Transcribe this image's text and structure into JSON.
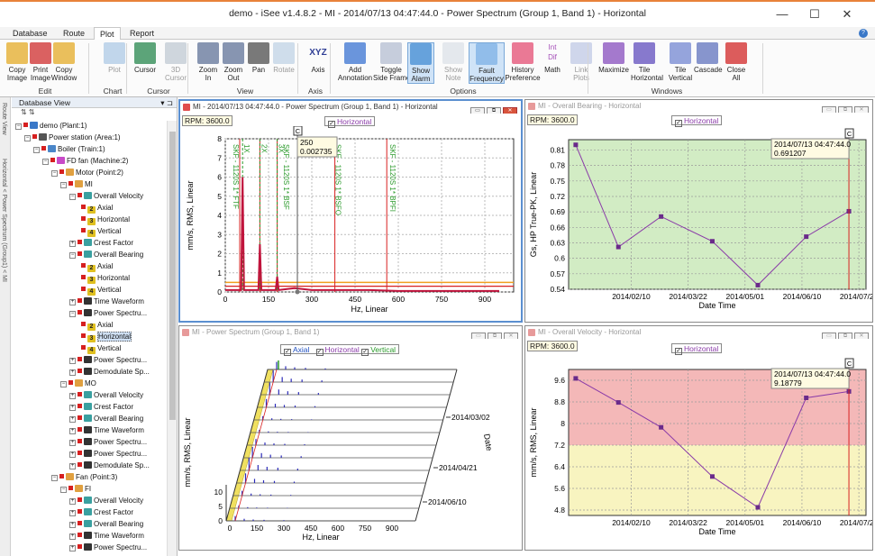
{
  "window": {
    "title": "demo - iSee v1.4.8.2 - MI - 2014/07/13 04:47:44.0 - Power Spectrum (Group 1, Band 1) - Horizontal",
    "minimize": "—",
    "maximize": "☐",
    "close": "✕"
  },
  "tabs": [
    "Database",
    "Route",
    "Plot",
    "Report"
  ],
  "ribbon": {
    "groups": [
      {
        "label": "Edit",
        "buttons": [
          "Copy\nImage",
          "Print\nImage",
          "Copy\nWindow"
        ]
      },
      {
        "label": "Chart",
        "buttons": [
          "Plot"
        ]
      },
      {
        "label": "Cursor",
        "buttons": [
          "Cursor",
          "3D\nCursor"
        ]
      },
      {
        "label": "View",
        "buttons": [
          "Zoom\nIn",
          "Zoom\nOut",
          "Pan",
          "Rotate"
        ]
      },
      {
        "label": "Axis",
        "buttons": [
          "Axis"
        ]
      },
      {
        "label": "Options",
        "buttons": [
          "Add\nAnnotation",
          "Toggle\nSide Frame",
          "Show\nAlarm",
          "Show\nNote",
          "Fault\nFrequency",
          "History\nPreference",
          "Math",
          "Link\nPlots"
        ]
      },
      {
        "label": "Windows",
        "buttons": [
          "Maximize",
          "Tile\nHorizontal",
          "Tile\nVertical",
          "Cascade",
          "Close\nAll"
        ]
      }
    ],
    "math_icon_text": "Int\nDif",
    "axis_icon_text": "XYZ"
  },
  "side_tabs": [
    "Route View",
    "Horizontal < Power Spectrum (Group1) < MI"
  ],
  "db_panel": {
    "title": "Database View",
    "pin": "▾ ⊐",
    "tools": "⇅ ⇅"
  },
  "tree": [
    {
      "label": "demo (Plant:1)",
      "level": 0,
      "exp": "−",
      "icon": "#3a78c8"
    },
    {
      "label": "Power station (Area:1)",
      "level": 1,
      "exp": "−",
      "icon": "#555555"
    },
    {
      "label": "Boiler (Train:1)",
      "level": 2,
      "exp": "−",
      "icon": "#4a86c8"
    },
    {
      "label": "FD fan (Machine:2)",
      "level": 3,
      "exp": "−",
      "icon": "#c84ac8"
    },
    {
      "label": "Motor (Point:2)",
      "level": 4,
      "exp": "−",
      "icon": "#e0a040"
    },
    {
      "label": "MI",
      "level": 5,
      "exp": "−",
      "icon": "#e0a040"
    },
    {
      "label": "Overall Velocity",
      "level": 6,
      "exp": "−",
      "icon": "#3aa0a0"
    },
    {
      "label": "Axial",
      "level": 7,
      "exp": "",
      "icon": "#e0c020",
      "num": "2"
    },
    {
      "label": "Horizontal",
      "level": 7,
      "exp": "",
      "icon": "#e0c020",
      "num": "3"
    },
    {
      "label": "Vertical",
      "level": 7,
      "exp": "",
      "icon": "#e0c020",
      "num": "4"
    },
    {
      "label": "Crest Factor",
      "level": 6,
      "exp": "+",
      "icon": "#3aa0a0"
    },
    {
      "label": "Overall Bearing",
      "level": 6,
      "exp": "−",
      "icon": "#3aa0a0"
    },
    {
      "label": "Axial",
      "level": 7,
      "exp": "",
      "icon": "#e0c020",
      "num": "2"
    },
    {
      "label": "Horizontal",
      "level": 7,
      "exp": "",
      "icon": "#e0c020",
      "num": "3"
    },
    {
      "label": "Vertical",
      "level": 7,
      "exp": "",
      "icon": "#e0c020",
      "num": "4"
    },
    {
      "label": "Time Waveform",
      "level": 6,
      "exp": "+",
      "icon": "#333333"
    },
    {
      "label": "Power Spectru...",
      "level": 6,
      "exp": "−",
      "icon": "#333333"
    },
    {
      "label": "Axial",
      "level": 7,
      "exp": "",
      "icon": "#e0c020",
      "num": "2"
    },
    {
      "label": "Horizontal",
      "level": 7,
      "exp": "",
      "icon": "#e0c020",
      "num": "3",
      "highlight": true
    },
    {
      "label": "Vertical",
      "level": 7,
      "exp": "",
      "icon": "#e0c020",
      "num": "4"
    },
    {
      "label": "Power Spectru...",
      "level": 6,
      "exp": "+",
      "icon": "#333333"
    },
    {
      "label": "Demodulate Sp...",
      "level": 6,
      "exp": "+",
      "icon": "#333333"
    },
    {
      "label": "MO",
      "level": 5,
      "exp": "−",
      "icon": "#e0a040"
    },
    {
      "label": "Overall Velocity",
      "level": 6,
      "exp": "+",
      "icon": "#3aa0a0"
    },
    {
      "label": "Crest Factor",
      "level": 6,
      "exp": "+",
      "icon": "#3aa0a0"
    },
    {
      "label": "Overall Bearing",
      "level": 6,
      "exp": "+",
      "icon": "#3aa0a0"
    },
    {
      "label": "Time Waveform",
      "level": 6,
      "exp": "+",
      "icon": "#333333"
    },
    {
      "label": "Power Spectru...",
      "level": 6,
      "exp": "+",
      "icon": "#333333"
    },
    {
      "label": "Power Spectru...",
      "level": 6,
      "exp": "+",
      "icon": "#333333"
    },
    {
      "label": "Demodulate Sp...",
      "level": 6,
      "exp": "+",
      "icon": "#333333"
    },
    {
      "label": "Fan (Point:3)",
      "level": 4,
      "exp": "−",
      "icon": "#e0a040"
    },
    {
      "label": "FI",
      "level": 5,
      "exp": "−",
      "icon": "#e0a040"
    },
    {
      "label": "Overall Velocity",
      "level": 6,
      "exp": "+",
      "icon": "#3aa0a0"
    },
    {
      "label": "Crest Factor",
      "level": 6,
      "exp": "+",
      "icon": "#3aa0a0"
    },
    {
      "label": "Overall Bearing",
      "level": 6,
      "exp": "+",
      "icon": "#3aa0a0"
    },
    {
      "label": "Time Waveform",
      "level": 6,
      "exp": "+",
      "icon": "#333333"
    },
    {
      "label": "Power Spectru...",
      "level": 6,
      "exp": "+",
      "icon": "#333333"
    }
  ],
  "windows": {
    "spectrum": {
      "title": "MI - 2014/07/13 04:47:44.0 - Power Spectrum (Group 1, Band 1) - Horizontal",
      "rpm": "RPM: 3600.0",
      "legend": "Horizontal",
      "cursor_tag": "C"
    },
    "bearing": {
      "title": "MI - Overall Bearing - Horizontal",
      "rpm": "RPM: 3600.0",
      "legend": "Horizontal",
      "cursor_tag": "C"
    },
    "waterfall": {
      "title": "MI - Power Spectrum (Group 1, Band 1)",
      "legend": [
        "Axial",
        "Horizontal",
        "Vertical"
      ]
    },
    "velocity": {
      "title": "MI - Overall Velocity - Horizontal",
      "rpm": "RPM: 3600.0",
      "legend": "Horizontal",
      "cursor_tag": "C"
    }
  },
  "colors": {
    "accent": "#e8823a",
    "line_purple": "#8a3aa8",
    "spectrum_red": "#c0143c",
    "alarm_red": "#f4b8b8",
    "alarm_yellow": "#f8f4c0",
    "normal_green": "#d2ecc4",
    "fault_green": "#2a9a2a"
  },
  "chart_data": [
    {
      "type": "line",
      "id": "power-spectrum",
      "xlabel": "Hz, Linear",
      "ylabel": "mm/s, RMS, Linear",
      "xlim": [
        0,
        1000
      ],
      "ylim": [
        0,
        8
      ],
      "xticks": [
        0,
        150,
        300,
        450,
        600,
        750,
        900
      ],
      "yticks": [
        0,
        1,
        2,
        3,
        4,
        5,
        6,
        7,
        8
      ],
      "series": [
        {
          "name": "Horizontal",
          "x": [
            0,
            55,
            60,
            65,
            115,
            120,
            125,
            175,
            180,
            185,
            240,
            300,
            400,
            500,
            600,
            700,
            800,
            900,
            950
          ],
          "y": [
            0.1,
            0.1,
            6.0,
            0.1,
            0.1,
            2.5,
            0.1,
            0.1,
            0.8,
            0.1,
            0.2,
            0.1,
            0.1,
            0.1,
            0.05,
            0.05,
            0.05,
            0.05,
            0.05
          ]
        }
      ],
      "fault_markers": [
        {
          "x": 60,
          "label": "1X"
        },
        {
          "x": 120,
          "label": "2X"
        },
        {
          "x": 180,
          "label": "3X"
        }
      ],
      "fault_labels": [
        "SKF - 1120S 1* FTF",
        "SKF - 1120S 1* BSF",
        "SKF - 1120S 1* BSFO",
        "SKF - 1120S 1* BPFI"
      ],
      "fault_label_x": [
        15,
        190,
        370,
        560
      ],
      "red_lines_x": [
        50,
        120,
        180,
        380,
        560
      ],
      "cursor": {
        "x": 250,
        "y": 0.002735,
        "label": "250\n0.002735"
      },
      "alarm_levels": [
        0.5,
        0.3
      ]
    },
    {
      "type": "line",
      "id": "overall-bearing",
      "xlabel": "Date Time",
      "ylabel": "Gs, HP True-PK, Linear",
      "ylim": [
        0.54,
        0.83
      ],
      "yticks": [
        0.54,
        0.57,
        0.6,
        0.63,
        0.66,
        0.69,
        0.72,
        0.75,
        0.78,
        0.81
      ],
      "xticks": [
        "2014/02/10",
        "2014/03/22",
        "2014/05/01",
        "2014/06/10",
        "2014/07/20"
      ],
      "x": [
        "2014/01/02",
        "2014/02/01",
        "2014/03/03",
        "2014/04/08",
        "2014/05/10",
        "2014/06/13",
        "2014/07/13"
      ],
      "series": [
        {
          "name": "Horizontal",
          "values": [
            0.82,
            0.622,
            0.681,
            0.633,
            0.548,
            0.642,
            0.691207
          ]
        }
      ],
      "cursor": {
        "label": "2014/07/13 04:47:44.0\n0.691207"
      }
    },
    {
      "type": "line",
      "id": "overall-velocity",
      "xlabel": "Date Time",
      "ylabel": "mm/s, RMS, Linear",
      "ylim": [
        4.6,
        10.0
      ],
      "yticks": [
        4.8,
        5.6,
        6.4,
        7.2,
        8.0,
        8.8,
        9.6
      ],
      "xticks": [
        "2014/02/10",
        "2014/03/22",
        "2014/05/01",
        "2014/06/10",
        "2014/07/20"
      ],
      "x": [
        "2014/01/02",
        "2014/02/01",
        "2014/03/03",
        "2014/04/08",
        "2014/05/10",
        "2014/06/13",
        "2014/07/13"
      ],
      "series": [
        {
          "name": "Horizontal",
          "values": [
            9.67,
            8.78,
            7.86,
            6.04,
            4.9,
            8.95,
            9.18779
          ]
        }
      ],
      "alarm_bands": [
        {
          "from": 7.2,
          "to": 10.0,
          "color": "red"
        },
        {
          "from": 4.6,
          "to": 7.2,
          "color": "yellow"
        }
      ],
      "cursor": {
        "label": "2014/07/13 04:47:44.0\n9.18779"
      }
    },
    {
      "type": "line",
      "id": "waterfall",
      "xlabel": "Hz, Linear",
      "ylabel": "mm/s, RMS, Linear",
      "zlabel": "Date",
      "xticks": [
        0,
        150,
        300,
        450,
        600,
        750,
        900
      ],
      "yticks": [
        0,
        5,
        10
      ],
      "dates": [
        "2014/03/02",
        "2014/04/21",
        "2014/06/10"
      ]
    }
  ]
}
